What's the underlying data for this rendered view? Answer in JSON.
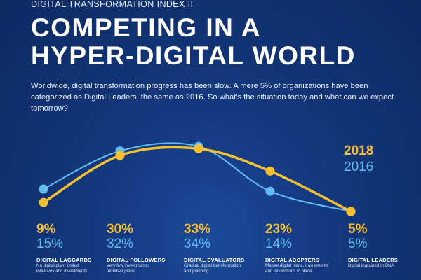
{
  "header": {
    "kicker": "DIGITAL TRANSFORMATION INDEX II",
    "title_line1": "COMPETING IN A",
    "title_line2": "HYPER-DIGITAL WORLD",
    "intro": "Worldwide, digital transformation progress has been slow. A mere 5% of organizations have been categorized as Digital Leaders, the same as 2016. So what's the situation today and what can we expect tomorrow?"
  },
  "legend": {
    "year_2018": "2018",
    "year_2016": "2016"
  },
  "colors": {
    "series_2018": "#f7c12e",
    "series_2016": "#62bdf1",
    "background": "#153a82"
  },
  "chart_data": {
    "type": "line",
    "categories": [
      "DIGITAL LAGGARDS",
      "DIGITAL FOLLOWERS",
      "DIGITAL EVALUATORS",
      "DIGITAL ADOPTERS",
      "DIGITAL LEADERS"
    ],
    "series": [
      {
        "name": "2018",
        "values": [
          9,
          30,
          33,
          23,
          5
        ]
      },
      {
        "name": "2016",
        "values": [
          15,
          32,
          34,
          14,
          5
        ]
      }
    ],
    "ylim": [
      0,
      40
    ],
    "grid": false,
    "legend_position": "right"
  },
  "columns": [
    {
      "pct_2018": "9%",
      "pct_2016": "15%",
      "name": "DIGITAL LAGGARDS",
      "desc1": "No digital plan; limited",
      "desc2": "initiatives and investments"
    },
    {
      "pct_2018": "30%",
      "pct_2016": "32%",
      "name": "DIGITAL FOLLOWERS",
      "desc1": "Very few investments;",
      "desc2": "tentative plans"
    },
    {
      "pct_2018": "33%",
      "pct_2016": "34%",
      "name": "DIGITAL EVALUATORS",
      "desc1": "Gradual digital transformation",
      "desc2": "and planning"
    },
    {
      "pct_2018": "23%",
      "pct_2016": "14%",
      "name": "DIGITAL ADOPTERS",
      "desc1": "Mature digital plans, investments",
      "desc2": "and innovations in place"
    },
    {
      "pct_2018": "5%",
      "pct_2016": "5%",
      "name": "DIGITAL LEADERS",
      "desc1": "Digital ingrained in DNA",
      "desc2": ""
    }
  ]
}
